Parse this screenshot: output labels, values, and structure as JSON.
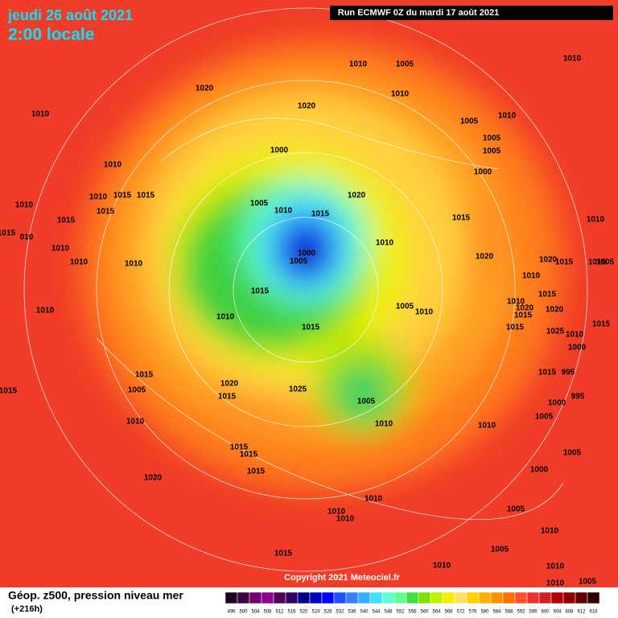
{
  "header": {
    "date": "jeudi 26 août 2021",
    "time": "2:00 locale",
    "run": "Run ECMWF 0Z du mardi 17 août 2021"
  },
  "copyright": "Copyright 2021 Meteociel.fr",
  "footer": {
    "title": "Géop. z500, pression niveau mer",
    "lead": "(+216h)"
  },
  "isobar_labels": [
    "1010",
    "1005",
    "1010",
    "1020",
    "1010",
    "1020",
    "1010",
    "1010",
    "1005",
    "1005",
    "1000",
    "1005",
    "1010",
    "1000",
    "1010",
    "1010",
    "1015",
    "1015",
    "1020",
    "1005",
    "1010",
    "1015",
    "1015",
    "1015",
    "1010",
    "1015",
    "1015",
    "010",
    "1010",
    "1000",
    "1005",
    "1010",
    "1020",
    "1010",
    "1010",
    "1020",
    "1015",
    "1015",
    "1005",
    "1010",
    "1015",
    "1015",
    "1010",
    "1020",
    "1020",
    "1005",
    "1010",
    "1010",
    "1010",
    "1015",
    "1015",
    "1025",
    "1010",
    "1015",
    "1015",
    "1000",
    "1015",
    "1005",
    "995",
    "1015",
    "1015",
    "1020",
    "1025",
    "1015",
    "995",
    "1000",
    "1005",
    "1010",
    "1010",
    "1010",
    "1005",
    "1015",
    "1015",
    "1005",
    "1015",
    "1000",
    "1020",
    "1010",
    "1010",
    "1010",
    "1005",
    "1010",
    "1005",
    "1015",
    "1010",
    "1010",
    "1010",
    "1005"
  ],
  "legend": {
    "values": [
      496,
      500,
      504,
      508,
      512,
      516,
      520,
      524,
      528,
      532,
      536,
      540,
      544,
      548,
      552,
      556,
      560,
      564,
      568,
      572,
      576,
      580,
      584,
      588,
      592,
      596,
      600,
      604,
      608,
      612,
      616
    ],
    "colors": [
      "#200020",
      "#400040",
      "#700070",
      "#900090",
      "#500050",
      "#300060",
      "#000080",
      "#0000c0",
      "#0000ff",
      "#2050ff",
      "#3080ff",
      "#30b0ff",
      "#40e0ff",
      "#60ffd0",
      "#60ff90",
      "#40e040",
      "#80e000",
      "#c0f000",
      "#f0f000",
      "#ffe060",
      "#ffd000",
      "#ffb000",
      "#ff9000",
      "#ff7000",
      "#ff5030",
      "#f03030",
      "#d02020",
      "#b00000",
      "#900000",
      "#600000",
      "#300000"
    ]
  }
}
